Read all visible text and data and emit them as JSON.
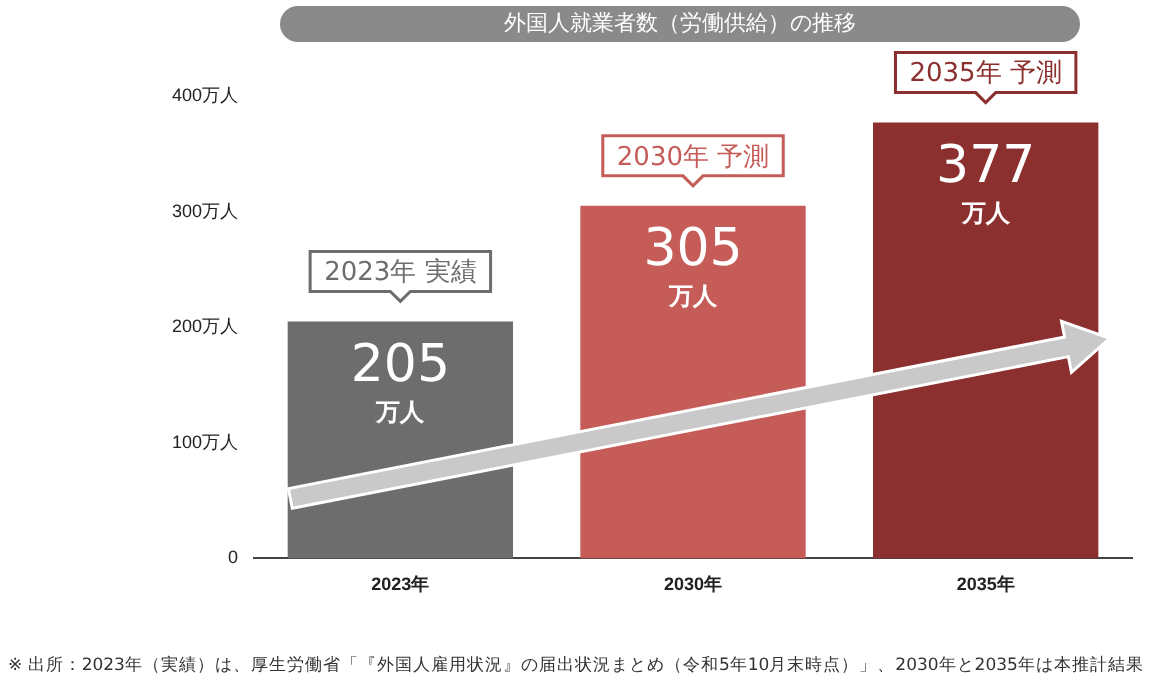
{
  "chart_data": {
    "type": "bar",
    "title": "外国人就業者数（労働供給）の推移",
    "categories": [
      "2023年",
      "2030年",
      "2035年"
    ],
    "values": [
      205,
      305,
      377
    ],
    "colors": [
      "#6d6d6d",
      "#c65c58",
      "#8c2f2f"
    ],
    "value_labels": [
      "205\n万人",
      "305\n万人",
      "377\n万人"
    ],
    "ylim": [
      0,
      400
    ],
    "yticks": [
      {
        "value": 0,
        "label": "0"
      },
      {
        "value": 100,
        "label": "100万人"
      },
      {
        "value": 200,
        "label": "200万人"
      },
      {
        "value": 300,
        "label": "300万人"
      },
      {
        "value": 400,
        "label": "400万人"
      }
    ],
    "grid": false,
    "legend": false,
    "annotations": [
      {
        "text": "2023年 実績",
        "x": "2023年",
        "y": 205
      },
      {
        "text": "2030年 予測",
        "x": "2030年",
        "y": 305
      },
      {
        "text": "2035年 予測",
        "x": "2035年",
        "y": 377
      },
      "※ 出所：2023年（実績）は、厚生労働省「『外国人雇用状況』の届出状況まとめ（令和5年10月末時点）」、2030年と2035年は本推計結果"
    ]
  }
}
